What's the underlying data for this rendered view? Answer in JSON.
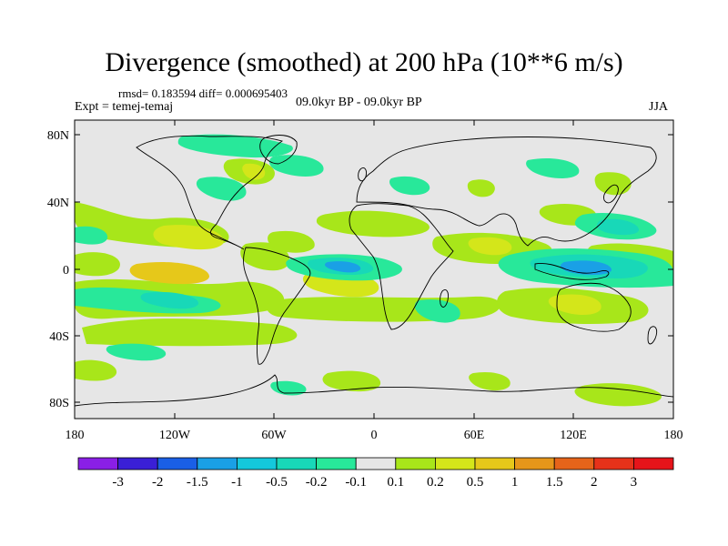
{
  "figure": {
    "title": "Divergence (smoothed) at 200 hPa (10**6 m/s)",
    "stats_line": "rmsd= 0.183594  diff= 0.000695403",
    "left_label": "Expt = temej-temaj",
    "center_label": "09.0kyr BP - 09.0kyr BP",
    "right_label": "JJA"
  },
  "axes": {
    "lat_ticks": [
      "80N",
      "40N",
      "0",
      "40S",
      "80S"
    ],
    "lon_ticks": [
      "180",
      "120W",
      "60W",
      "0",
      "60E",
      "120E",
      "180"
    ]
  },
  "colorbar": {
    "labels": [
      "-3",
      "-2",
      "-1.5",
      "-1",
      "-0.5",
      "-0.2",
      "-0.1",
      "0.1",
      "0.2",
      "0.5",
      "1",
      "1.5",
      "2",
      "3"
    ],
    "colors": [
      "#8a1fe6",
      "#3a1fd6",
      "#1a5fe6",
      "#1aa0e6",
      "#14c8dc",
      "#18d8b8",
      "#28e89a",
      "#e6e6e6",
      "#a8e61a",
      "#d4e61a",
      "#e6c81a",
      "#e6961a",
      "#e6641a",
      "#e6321a",
      "#e6141a"
    ]
  }
}
